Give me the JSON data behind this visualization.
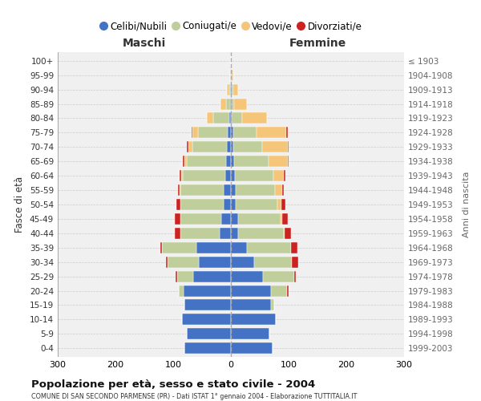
{
  "age_groups": [
    "100+",
    "95-99",
    "90-94",
    "85-89",
    "80-84",
    "75-79",
    "70-74",
    "65-69",
    "60-64",
    "55-59",
    "50-54",
    "45-49",
    "40-44",
    "35-39",
    "30-34",
    "25-29",
    "20-24",
    "15-19",
    "10-14",
    "5-9",
    "0-4"
  ],
  "birth_years": [
    "≤ 1903",
    "1904-1908",
    "1909-1913",
    "1914-1918",
    "1919-1923",
    "1924-1928",
    "1929-1933",
    "1934-1938",
    "1939-1943",
    "1944-1948",
    "1949-1953",
    "1954-1958",
    "1959-1963",
    "1964-1968",
    "1969-1973",
    "1974-1978",
    "1979-1983",
    "1984-1988",
    "1989-1993",
    "1994-1998",
    "1999-2003"
  ],
  "males": {
    "celibi": [
      0,
      0,
      0,
      1,
      3,
      5,
      7,
      8,
      10,
      12,
      12,
      16,
      20,
      60,
      55,
      65,
      82,
      80,
      85,
      76,
      80
    ],
    "coniugati": [
      0,
      1,
      3,
      8,
      28,
      52,
      60,
      68,
      73,
      75,
      75,
      72,
      68,
      60,
      55,
      28,
      8,
      0,
      0,
      0,
      0
    ],
    "vedovi": [
      0,
      1,
      4,
      9,
      10,
      9,
      7,
      5,
      3,
      2,
      1,
      0,
      0,
      0,
      0,
      0,
      0,
      0,
      0,
      0,
      0
    ],
    "divorziati": [
      0,
      0,
      0,
      0,
      0,
      2,
      3,
      3,
      3,
      3,
      7,
      9,
      9,
      2,
      3,
      3,
      0,
      0,
      0,
      0,
      0
    ]
  },
  "females": {
    "nubili": [
      0,
      0,
      1,
      2,
      2,
      4,
      4,
      5,
      7,
      8,
      9,
      12,
      12,
      28,
      40,
      55,
      70,
      70,
      78,
      67,
      72
    ],
    "coniugate": [
      0,
      1,
      3,
      4,
      18,
      40,
      50,
      60,
      67,
      69,
      72,
      74,
      80,
      76,
      65,
      55,
      27,
      5,
      0,
      0,
      0
    ],
    "vedove": [
      0,
      3,
      9,
      22,
      42,
      52,
      44,
      33,
      18,
      12,
      7,
      3,
      1,
      0,
      0,
      0,
      0,
      0,
      0,
      0,
      0
    ],
    "divorziate": [
      0,
      0,
      0,
      0,
      0,
      2,
      2,
      2,
      3,
      2,
      7,
      9,
      11,
      11,
      11,
      3,
      3,
      0,
      0,
      0,
      0
    ]
  },
  "colors": {
    "celibi": "#4472C4",
    "coniugati": "#BFCE9B",
    "vedovi": "#F5C57A",
    "divorziati": "#CC2222"
  },
  "title": "Popolazione per età, sesso e stato civile - 2004",
  "subtitle": "COMUNE DI SAN SECONDO PARMENSE (PR) - Dati ISTAT 1° gennaio 2004 - Elaborazione TUTTITALIA.IT",
  "ylabel": "Fasce di età",
  "ylabel_right": "Anni di nascita",
  "xlabel_left": "Maschi",
  "xlabel_right": "Femmine",
  "legend_labels": [
    "Celibi/Nubili",
    "Coniugati/e",
    "Vedovi/e",
    "Divorziati/e"
  ],
  "xlim": 300,
  "background_color": "#ffffff",
  "plot_bg": "#f0f0f0",
  "grid_color": "#cccccc"
}
